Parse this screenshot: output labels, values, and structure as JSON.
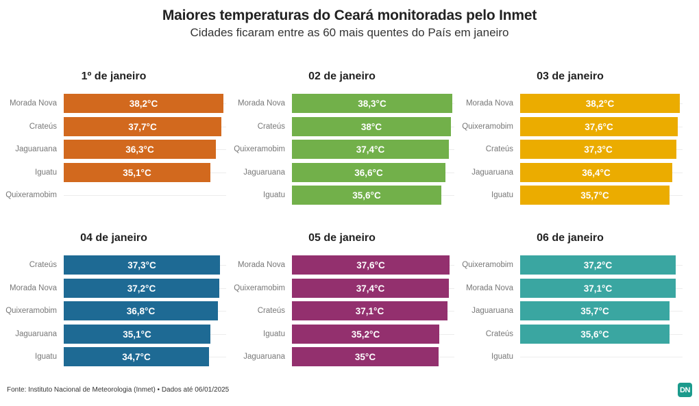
{
  "header": {
    "title": "Maiores temperaturas do Ceará monitoradas pelo Inmet",
    "subtitle": "Cidades ficaram entre as 60 mais quentes do País em janeiro"
  },
  "footer": {
    "source": "Fonte: Instituto Nacional de Meteorologia (Inmet) • Dados até 06/01/2025",
    "logo_text": "DN"
  },
  "chart_data": [
    {
      "type": "bar",
      "title": "1º de janeiro",
      "color": "#d2691e",
      "categories": [
        "Morada Nova",
        "Crateús",
        "Jaguaruana",
        "Iguatu",
        "Quixeramobim"
      ],
      "values": [
        38.2,
        37.7,
        36.3,
        35.1,
        null
      ],
      "labels": [
        "38,2°C",
        "37,7°C",
        "36,3°C",
        "35,1°C",
        ""
      ],
      "xlim": [
        0,
        38.3
      ]
    },
    {
      "type": "bar",
      "title": "02 de janeiro",
      "color": "#72b04a",
      "categories": [
        "Morada Nova",
        "Crateús",
        "Quixeramobim",
        "Jaguaruana",
        "Iguatu"
      ],
      "values": [
        38.3,
        38.0,
        37.4,
        36.6,
        35.6
      ],
      "labels": [
        "38,3°C",
        "38°C",
        "37,4°C",
        "36,6°C",
        "35,6°C"
      ],
      "xlim": [
        0,
        38.3
      ]
    },
    {
      "type": "bar",
      "title": "03 de janeiro",
      "color": "#ebac00",
      "categories": [
        "Morada Nova",
        "Quixeramobim",
        "Crateús",
        "Jaguaruana",
        "Iguatu"
      ],
      "values": [
        38.2,
        37.6,
        37.3,
        36.4,
        35.7
      ],
      "labels": [
        "38,2°C",
        "37,6°C",
        "37,3°C",
        "36,4°C",
        "35,7°C"
      ],
      "xlim": [
        0,
        38.3
      ]
    },
    {
      "type": "bar",
      "title": "04 de janeiro",
      "color": "#1e6a94",
      "categories": [
        "Crateús",
        "Morada Nova",
        "Quixeramobim",
        "Jaguaruana",
        "Iguatu"
      ],
      "values": [
        37.3,
        37.2,
        36.8,
        35.1,
        34.7
      ],
      "labels": [
        "37,3°C",
        "37,2°C",
        "36,8°C",
        "35,1°C",
        "34,7°C"
      ],
      "xlim": [
        0,
        38.3
      ]
    },
    {
      "type": "bar",
      "title": "05 de janeiro",
      "color": "#93306e",
      "categories": [
        "Morada Nova",
        "Quixeramobim",
        "Crateús",
        "Iguatu",
        "Jaguaruana"
      ],
      "values": [
        37.6,
        37.4,
        37.1,
        35.2,
        35.0
      ],
      "labels": [
        "37,6°C",
        "37,4°C",
        "37,1°C",
        "35,2°C",
        "35°C"
      ],
      "xlim": [
        0,
        38.3
      ]
    },
    {
      "type": "bar",
      "title": "06 de janeiro",
      "color": "#3aa6a1",
      "categories": [
        "Quixeramobim",
        "Morada Nova",
        "Jaguaruana",
        "Crateús",
        "Iguatu"
      ],
      "values": [
        37.2,
        37.1,
        35.7,
        35.6,
        null
      ],
      "labels": [
        "37,2°C",
        "37,1°C",
        "35,7°C",
        "35,6°C",
        ""
      ],
      "xlim": [
        0,
        38.3
      ]
    }
  ]
}
